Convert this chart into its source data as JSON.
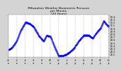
{
  "title": "Milwaukee Weather Barometric Pressure\nper Minute\n(24 Hours)",
  "title_fontsize": 3.2,
  "dot_color": "blue",
  "background_color": "#d4d4d4",
  "plot_bg_color": "#ffffff",
  "ylim": [
    29.0,
    30.45
  ],
  "ytick_values": [
    29.1,
    29.2,
    29.3,
    29.4,
    29.5,
    29.6,
    29.7,
    29.8,
    29.9,
    30.0,
    30.1,
    30.2,
    30.3,
    30.4
  ],
  "ylabel_fontsize": 2.5,
  "xlabel_fontsize": 2.3,
  "num_points": 1440,
  "grid_color": "#999999",
  "grid_style": "--",
  "grid_linewidth": 0.25
}
